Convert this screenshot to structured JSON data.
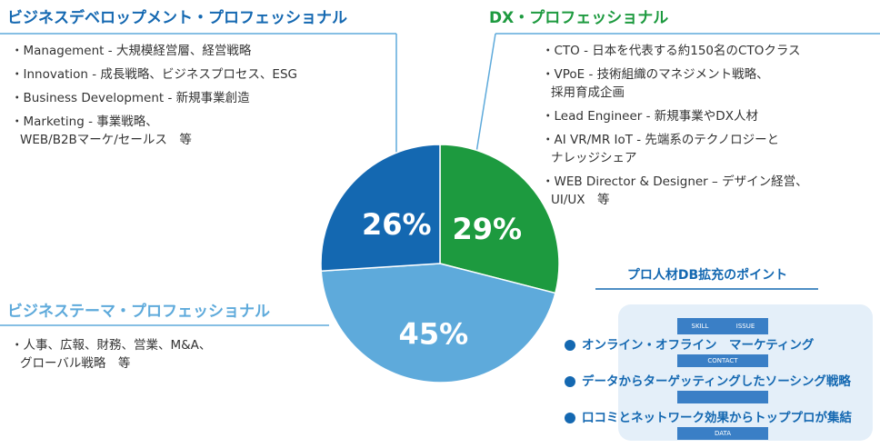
{
  "chart_data": {
    "type": "pie",
    "categories": [
      "DX・プロフェッショナル",
      "ビジネステーマ・プロフェッショナル",
      "ビジネスデベロップメント・プロフェッショナル"
    ],
    "values": [
      29,
      45,
      26
    ],
    "value_labels": [
      "29%",
      "45%",
      "26%"
    ],
    "colors": [
      "#1d9a3f",
      "#5eaadb",
      "#1468b1"
    ],
    "descriptions": [
      [
        [
          "・CTO - 日本を代表する約150名のCTOクラス"
        ],
        [
          "・VPoE - 技術組織のマネジメント戦略、",
          "採用育成企画"
        ],
        [
          "・Lead Engineer - 新規事業やDX人材"
        ],
        [
          "・AI VR/MR IoT - 先端系のテクノロジーと",
          "ナレッジシェア"
        ],
        [
          "・WEB Director & Designer – デザイン経営、",
          "UI/UX　等"
        ]
      ],
      [
        [
          "・人事、広報、財務、営業、M&A、",
          "グローバル戦略　等"
        ]
      ],
      [
        [
          "・Management - 大規模経営層、経営戦略"
        ],
        [
          "・Innovation - 成長戦略、ビジネスプロセス、ESG"
        ],
        [
          "・Business Development - 新規事業創造"
        ],
        [
          "・Marketing - 事業戦略、",
          "WEB/B2Bマーケ/セールス　等"
        ]
      ]
    ]
  },
  "points": {
    "title": "プロ人材DB拡充のポイント",
    "items": [
      "オンライン・オフライン　マーケティング",
      "データからターゲッティングしたソーシング戦略",
      "口コミとネットワーク効果からトッププロが集結"
    ],
    "graphic_labels": [
      "SKILL",
      "ISSUE",
      "CONTACT",
      "DATA"
    ]
  }
}
